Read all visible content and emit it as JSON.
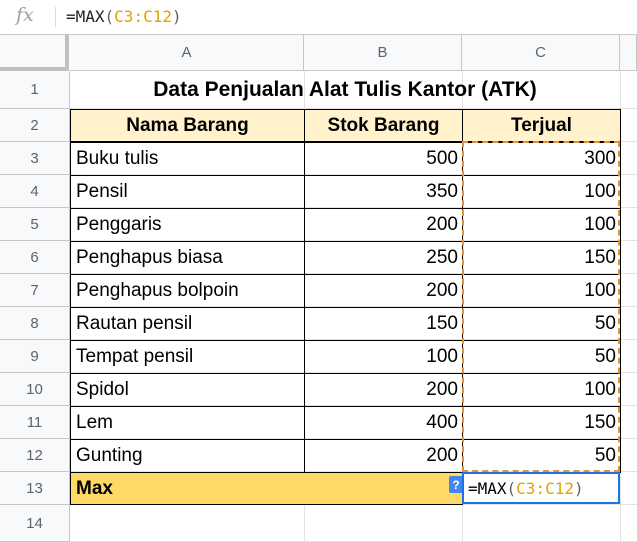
{
  "formula_bar": {
    "fx_label": "fx",
    "prefix": "=MAX",
    "open_paren": "(",
    "range": "C3:C12",
    "close_paren": ")"
  },
  "columns": [
    "A",
    "B",
    "C"
  ],
  "rows": [
    "1",
    "2",
    "3",
    "4",
    "5",
    "6",
    "7",
    "8",
    "9",
    "10",
    "11",
    "12",
    "13",
    "14"
  ],
  "sheet": {
    "title": "Data Penjualan Alat Tulis Kantor (ATK)",
    "headers": {
      "a": "Nama Barang",
      "b": "Stok Barang",
      "c": "Terjual"
    },
    "items": [
      {
        "name": "Buku tulis",
        "stok": "500",
        "terjual": "300"
      },
      {
        "name": "Pensil",
        "stok": "350",
        "terjual": "100"
      },
      {
        "name": "Penggaris",
        "stok": "200",
        "terjual": "100"
      },
      {
        "name": "Penghapus biasa",
        "stok": "250",
        "terjual": "150"
      },
      {
        "name": "Penghapus bolpoin",
        "stok": "200",
        "terjual": "100"
      },
      {
        "name": "Rautan pensil",
        "stok": "150",
        "terjual": "50"
      },
      {
        "name": "Tempat pensil",
        "stok": "100",
        "terjual": "50"
      },
      {
        "name": "Spidol",
        "stok": "200",
        "terjual": "100"
      },
      {
        "name": "Lem",
        "stok": "400",
        "terjual": "150"
      },
      {
        "name": "Gunting",
        "stok": "200",
        "terjual": "50"
      }
    ],
    "max_label": "Max",
    "help_badge": "?"
  },
  "colors": {
    "header_fill": "#fff2cc",
    "max_fill": "#ffd966",
    "range_highlight": "#e69138",
    "edit_border": "#1a73e8"
  }
}
